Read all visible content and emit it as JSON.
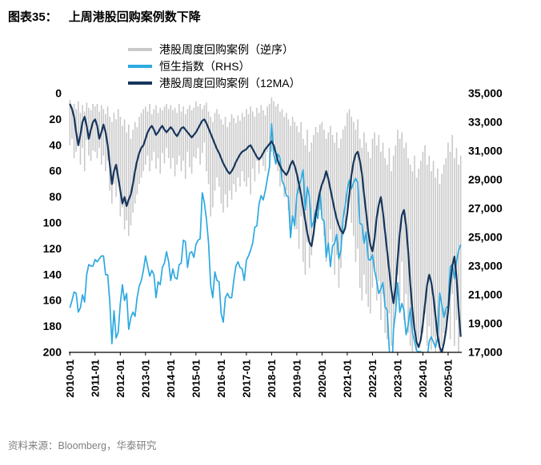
{
  "figure": {
    "label": "图表35：",
    "title": "上周港股回购案例数下降"
  },
  "legend": [
    {
      "label": "港股周度回购案例（逆序）",
      "color": "#c9c9c9"
    },
    {
      "label": "恒生指数（RHS）",
      "color": "#2ca9e1"
    },
    {
      "label": "港股周度回购案例（12MA）",
      "color": "#16365c"
    }
  ],
  "source": "资料来源：Bloomberg，华泰研究",
  "chart_data": {
    "type": "bar+line",
    "title": "上周港股回购案例数下降",
    "frequency": "monthly",
    "x_start": "2010-01",
    "x_end": "2025-07",
    "x_tick_labels": [
      "2010-01",
      "2011-01",
      "2012-01",
      "2013-01",
      "2014-01",
      "2015-01",
      "2016-01",
      "2017-01",
      "2018-01",
      "2019-01",
      "2020-01",
      "2021-01",
      "2022-01",
      "2023-01",
      "2024-01",
      "2025-01"
    ],
    "left_axis": {
      "min": 0,
      "max": 200,
      "inverted": true,
      "ticks": [
        0,
        20,
        40,
        60,
        80,
        100,
        120,
        140,
        160,
        180,
        200
      ]
    },
    "right_axis": {
      "min": 17000,
      "max": 35000,
      "ticks": [
        35000,
        33000,
        31000,
        29000,
        27000,
        25000,
        23000,
        21000,
        19000,
        17000
      ],
      "tick_labels": [
        "35,000",
        "33,000",
        "31,000",
        "29,000",
        "27,000",
        "25,000",
        "23,000",
        "21,000",
        "19,000",
        "17,000"
      ]
    },
    "series": [
      {
        "name": "港股周度回购案例（逆序）",
        "axis": "left",
        "type": "range-bar",
        "color": "#c9c9c9",
        "min": [
          5,
          10,
          8,
          12,
          6,
          15,
          9,
          14,
          7,
          11,
          13,
          8,
          10,
          8,
          14,
          9,
          12,
          16,
          10,
          18,
          22,
          15,
          20,
          12,
          18,
          25,
          20,
          30,
          24,
          35,
          28,
          22,
          26,
          18,
          15,
          12,
          10,
          14,
          8,
          16,
          12,
          9,
          15,
          11,
          13,
          10,
          8,
          12,
          9,
          13,
          11,
          15,
          8,
          14,
          10,
          16,
          12,
          9,
          13,
          11,
          6,
          10,
          8,
          12,
          9,
          7,
          14,
          18,
          22,
          15,
          12,
          16,
          20,
          24,
          18,
          26,
          22,
          16,
          19,
          23,
          17,
          21,
          15,
          18,
          12,
          16,
          10,
          14,
          18,
          11,
          15,
          9,
          13,
          17,
          10,
          8,
          3,
          6,
          10,
          8,
          14,
          12,
          18,
          15,
          20,
          25,
          18,
          22,
          25,
          30,
          22,
          35,
          40,
          28,
          45,
          38,
          32,
          26,
          30,
          24,
          22,
          28,
          35,
          30,
          25,
          32,
          38,
          30,
          42,
          35,
          28,
          25,
          15,
          12,
          18,
          22,
          28,
          20,
          35,
          42,
          30,
          38,
          45,
          50,
          35,
          30,
          40,
          32,
          45,
          38,
          50,
          55,
          42,
          60,
          48,
          40,
          28,
          35,
          30,
          42,
          38,
          50,
          55,
          60,
          48,
          65,
          58,
          52,
          45,
          40,
          55,
          48,
          60,
          52,
          65,
          58,
          70,
          62,
          55,
          50,
          38,
          45,
          32,
          50,
          42,
          55,
          48
        ],
        "max": [
          40,
          35,
          50,
          45,
          38,
          55,
          42,
          60,
          36,
          48,
          52,
          44,
          45,
          50,
          42,
          55,
          48,
          60,
          52,
          75,
          85,
          70,
          80,
          65,
          95,
          88,
          105,
          98,
          110,
          102,
          92,
          85,
          78,
          70,
          65,
          60,
          55,
          48,
          60,
          52,
          45,
          58,
          50,
          62,
          46,
          54,
          42,
          50,
          58,
          50,
          64,
          55,
          48,
          60,
          52,
          66,
          45,
          57,
          62,
          49,
          50,
          42,
          55,
          46,
          38,
          60,
          70,
          95,
          88,
          75,
          65,
          72,
          85,
          92,
          78,
          88,
          75,
          82,
          70,
          76,
          65,
          72,
          60,
          68,
          72,
          65,
          78,
          58,
          68,
          52,
          62,
          48,
          56,
          60,
          45,
          50,
          45,
          38,
          55,
          60,
          72,
          65,
          80,
          75,
          90,
          110,
          95,
          105,
          105,
          120,
          95,
          130,
          140,
          115,
          135,
          125,
          110,
          100,
          95,
          90,
          95,
          110,
          130,
          120,
          105,
          115,
          140,
          125,
          150,
          135,
          110,
          100,
          90,
          75,
          100,
          110,
          130,
          120,
          150,
          160,
          140,
          155,
          165,
          170,
          150,
          135,
          160,
          145,
          175,
          155,
          185,
          190,
          170,
          195,
          180,
          165,
          140,
          160,
          130,
          175,
          155,
          185,
          195,
          200,
          180,
          198,
          190,
          185,
          185,
          170,
          195,
          180,
          198,
          188,
          200,
          192,
          200,
          195,
          185,
          178,
          170,
          190,
          155,
          195,
          175,
          200,
          185
        ]
      },
      {
        "name": "恒生指数（RHS）",
        "axis": "right",
        "type": "line",
        "color": "#2ca9e1",
        "values": [
          20100,
          20600,
          21200,
          21100,
          19800,
          20100,
          21000,
          20500,
          22400,
          23100,
          23000,
          23000,
          23450,
          23300,
          23500,
          23700,
          23700,
          22400,
          22400,
          20500,
          17600,
          19900,
          18000,
          18400,
          20400,
          21700,
          20600,
          21100,
          18600,
          19400,
          19800,
          19500,
          20800,
          21600,
          22000,
          22700,
          23700,
          23000,
          22300,
          22700,
          22400,
          20800,
          21900,
          21700,
          22900,
          23200,
          24000,
          23300,
          22000,
          22800,
          22200,
          22100,
          23100,
          23200,
          24800,
          24700,
          22900,
          23900,
          24000,
          23600,
          24500,
          24800,
          24900,
          28100,
          27400,
          26250,
          24600,
          21700,
          20800,
          22600,
          22000,
          21900,
          19700,
          19100,
          20800,
          21100,
          20800,
          20800,
          22000,
          23000,
          23300,
          22900,
          22800,
          22000,
          23400,
          23700,
          24100,
          24600,
          25700,
          25800,
          27300,
          27900,
          27600,
          28250,
          29100,
          29900,
          32900,
          30800,
          30100,
          30800,
          30500,
          28900,
          28600,
          27900,
          27800,
          24980,
          26500,
          25800,
          27900,
          28600,
          29000,
          29700,
          26900,
          28500,
          27800,
          25700,
          26100,
          26900,
          26300,
          28200,
          26300,
          26100,
          23600,
          24600,
          22960,
          24400,
          24600,
          25200,
          23500,
          24100,
          26300,
          27200,
          28300,
          28980,
          28380,
          28800,
          29100,
          28800,
          25960,
          25900,
          24580,
          25380,
          23480,
          23400,
          23800,
          22700,
          21996,
          21089,
          21415,
          21860,
          20157,
          19954,
          17223,
          14687,
          18597,
          19781,
          21842,
          19786,
          20400,
          19895,
          18234,
          18916,
          20079,
          18382,
          17810,
          17112,
          17043,
          17047,
          15485,
          16511,
          16541,
          17763,
          18080,
          17719,
          17345,
          17989,
          21134,
          20317,
          19424,
          20060,
          20225,
          22941,
          23120,
          22119,
          23290,
          24072,
          24500
        ]
      },
      {
        "name": "港股周度回购案例（12MA）",
        "axis": "left",
        "type": "line",
        "color": "#16365c",
        "values": [
          8,
          12,
          18,
          30,
          40,
          32,
          22,
          18,
          25,
          35,
          28,
          22,
          20,
          25,
          35,
          30,
          24,
          30,
          40,
          55,
          70,
          60,
          55,
          65,
          75,
          85,
          80,
          87,
          82,
          78,
          70,
          60,
          52,
          46,
          42,
          40,
          35,
          30,
          27,
          25,
          28,
          32,
          30,
          27,
          25,
          28,
          30,
          28,
          26,
          28,
          31,
          33,
          30,
          27,
          26,
          28,
          30,
          32,
          34,
          32,
          30,
          27,
          24,
          21,
          20,
          23,
          27,
          31,
          35,
          39,
          43,
          46,
          50,
          54,
          57,
          60,
          62,
          60,
          57,
          53,
          50,
          47,
          45,
          44,
          43,
          41,
          40,
          43,
          46,
          49,
          51,
          49,
          46,
          43,
          41,
          39,
          37,
          40,
          46,
          52,
          56,
          59,
          61,
          63,
          60,
          55,
          52,
          56,
          62,
          70,
          78,
          88,
          98,
          108,
          115,
          118,
          108,
          94,
          84,
          76,
          70,
          66,
          60,
          66,
          74,
          82,
          90,
          97,
          102,
          106,
          108,
          104,
          93,
          78,
          63,
          53,
          47,
          45,
          52,
          62,
          78,
          92,
          107,
          117,
          122,
          112,
          96,
          86,
          80,
          92,
          107,
          122,
          137,
          152,
          162,
          150,
          128,
          108,
          94,
          90,
          102,
          122,
          147,
          167,
          182,
          192,
          196,
          190,
          178,
          163,
          148,
          140,
          146,
          157,
          172,
          187,
          196,
          200,
          193,
          183,
          168,
          148,
          133,
          126,
          142,
          167,
          188
        ]
      }
    ]
  }
}
